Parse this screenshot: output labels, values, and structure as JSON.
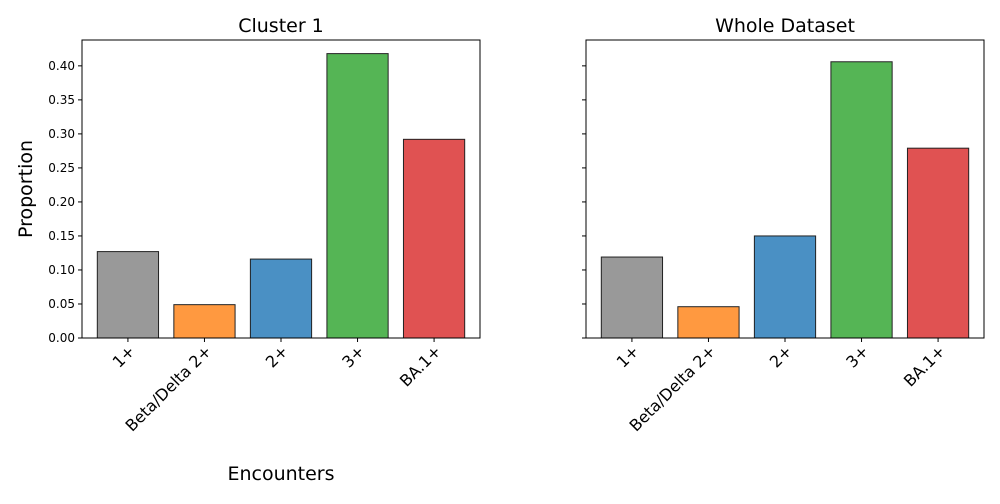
{
  "chart_data": [
    {
      "type": "bar",
      "title": "Cluster 1",
      "xlabel": "Encounters",
      "ylabel": "Proportion",
      "categories": [
        "1+",
        "Beta/Delta 2+",
        "2+",
        "3+",
        "BA.1+"
      ],
      "values": [
        0.127,
        0.049,
        0.116,
        0.418,
        0.292
      ],
      "colors": [
        "#999999",
        "#ff9940",
        "#4a90c4",
        "#55b555",
        "#e05252"
      ],
      "ylim": [
        0,
        0.438
      ],
      "yticks": [
        "0.00",
        "0.05",
        "0.10",
        "0.15",
        "0.20",
        "0.25",
        "0.30",
        "0.35",
        "0.40"
      ],
      "grid": false
    },
    {
      "type": "bar",
      "title": "Whole Dataset",
      "xlabel": "",
      "ylabel": "",
      "categories": [
        "1+",
        "Beta/Delta 2+",
        "2+",
        "3+",
        "BA.1+"
      ],
      "values": [
        0.119,
        0.046,
        0.15,
        0.406,
        0.279
      ],
      "colors": [
        "#999999",
        "#ff9940",
        "#4a90c4",
        "#55b555",
        "#e05252"
      ],
      "ylim": [
        0,
        0.438
      ],
      "yticks": [
        "0.00",
        "0.05",
        "0.10",
        "0.15",
        "0.20",
        "0.25",
        "0.30",
        "0.35",
        "0.40"
      ],
      "show_ytick_labels": false,
      "grid": false
    }
  ]
}
